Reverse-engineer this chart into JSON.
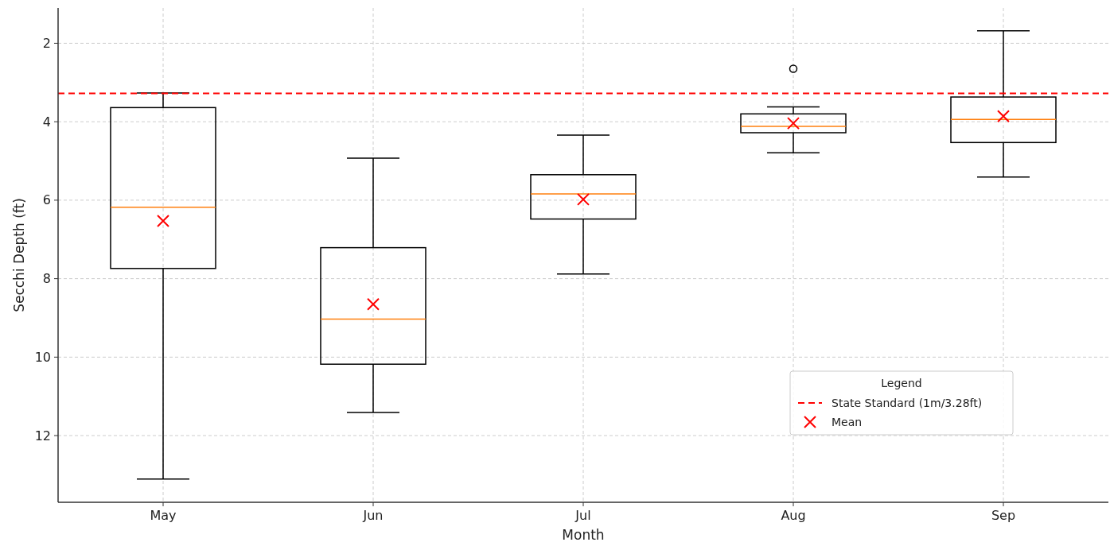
{
  "chart_data": {
    "type": "box",
    "xlabel": "Month",
    "ylabel": "Secchi Depth (ft)",
    "categories": [
      "May",
      "Jun",
      "Jul",
      "Aug",
      "Sep"
    ],
    "ylim": [
      13.7,
      1.1
    ],
    "yticks": [
      2,
      4,
      6,
      8,
      10,
      12
    ],
    "grid": true,
    "legend": "bottom right",
    "legend_title": "Legend",
    "series": [
      {
        "color": "#000000",
        "boxes": [
          {
            "low": 3.27,
            "q1": 3.64,
            "median": 6.18,
            "q3": 7.74,
            "high": 13.11
          },
          {
            "low": 4.93,
            "q1": 7.21,
            "median": 9.03,
            "q3": 10.18,
            "high": 11.41
          },
          {
            "low": 4.34,
            "q1": 5.35,
            "median": 5.84,
            "q3": 6.48,
            "high": 7.88
          },
          {
            "low": 3.62,
            "q1": 3.8,
            "median": 4.12,
            "q3": 4.28,
            "high": 4.79,
            "outliers": [
              2.65
            ]
          },
          {
            "low": 1.68,
            "q1": 3.37,
            "median": 3.94,
            "q3": 4.53,
            "high": 5.41
          }
        ]
      },
      {
        "type": "scatter",
        "name": "Mean",
        "color": "#ff0000",
        "marker": "cross",
        "x": [
          "May",
          "Jun",
          "Jul",
          "Aug",
          "Sep"
        ],
        "values": [
          6.53,
          8.65,
          5.98,
          4.04,
          3.86
        ]
      }
    ],
    "ref_lines": [
      {
        "axis": "y",
        "value": 3.28,
        "label": "State Standard (1m/3.28ft)",
        "color": "#ff0000",
        "line_style": "dashed"
      }
    ]
  }
}
